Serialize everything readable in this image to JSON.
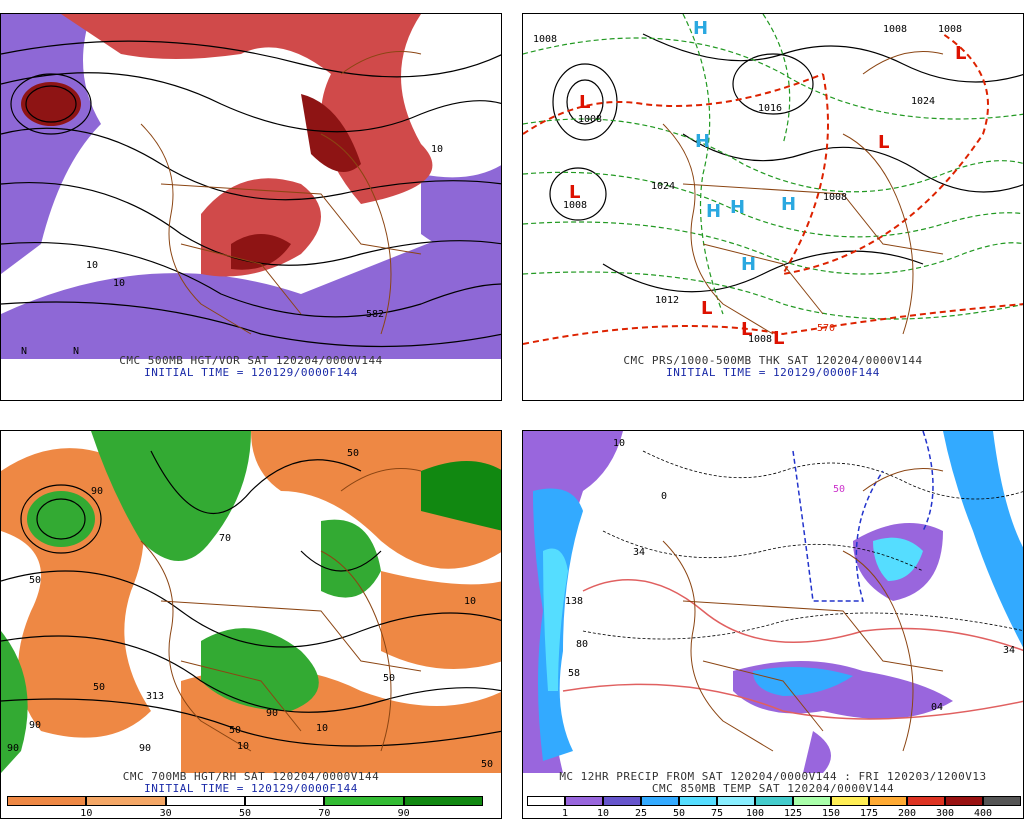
{
  "panels": [
    {
      "id": "500mb",
      "caption_line1": "CMC 500MB HGT/VOR SAT 120204/0000V144",
      "caption_line2": "INITIAL TIME = 120129/0000F144",
      "labels": [
        "582",
        "582",
        "10",
        "10",
        "10",
        "N",
        "N"
      ]
    },
    {
      "id": "prs-thk",
      "caption_line1": "CMC PRS/1000-500MB THK SAT 120204/0000V144",
      "caption_line2": "INITIAL TIME = 120129/0000F144",
      "labels": [
        "1008",
        "1008",
        "1008",
        "1012",
        "1024",
        "1008",
        "1008",
        "1016",
        "1008",
        "570",
        "1024",
        "1008"
      ],
      "centers": [
        "L",
        "L",
        "L",
        "L",
        "L",
        "L",
        "L",
        "H",
        "H",
        "H",
        "H",
        "H",
        "H"
      ]
    },
    {
      "id": "700mb",
      "caption_line1": "CMC 700MB HGT/RH SAT 120204/0000V144",
      "caption_line2": "INITIAL TIME = 120129/0000F144",
      "labels": [
        "90",
        "50",
        "90",
        "50",
        "70",
        "10",
        "50",
        "90",
        "90",
        "50",
        "10",
        "10",
        "50",
        "90",
        "313",
        "50"
      ],
      "legend": {
        "ticks": [
          "10",
          "30",
          "50",
          "70",
          "90"
        ],
        "colors": [
          "#ee8844",
          "#f4a766",
          "#ffffff",
          "#ffffff",
          "#33bb33",
          "#118811"
        ]
      }
    },
    {
      "id": "precip",
      "caption_line1": "MC 12HR PRECIP FROM SAT 120204/0000V144 : FRI 120203/1200V13",
      "caption_line2": "CMC 850MB TEMP SAT 120204/0000V144",
      "labels": [
        "10",
        "34",
        "138",
        "80",
        "58",
        "34",
        "04",
        "0",
        "50"
      ],
      "legend": {
        "ticks": [
          "1",
          "10",
          "25",
          "50",
          "75",
          "100",
          "125",
          "150",
          "175",
          "200",
          "300",
          "400"
        ],
        "colors": [
          "#ffffff",
          "#9966dd",
          "#6655cc",
          "#33aaff",
          "#55ddff",
          "#88eeff",
          "#44cccc",
          "#aaffaa",
          "#ffee55",
          "#ffaa33",
          "#dd3322",
          "#991111",
          "#555555"
        ]
      }
    }
  ],
  "colors": {
    "purple": "#8e68d6",
    "red": "#d04a4a",
    "darkred": "#8e1414",
    "orange": "#ee8844",
    "green": "#33aa33",
    "cyan": "#33ccee",
    "border": "#8b4513",
    "contour": "#000000",
    "thickness_green": "#229922",
    "thickness_red": "#dd2200",
    "low": "#dd1100",
    "high": "#2aa8e0"
  }
}
